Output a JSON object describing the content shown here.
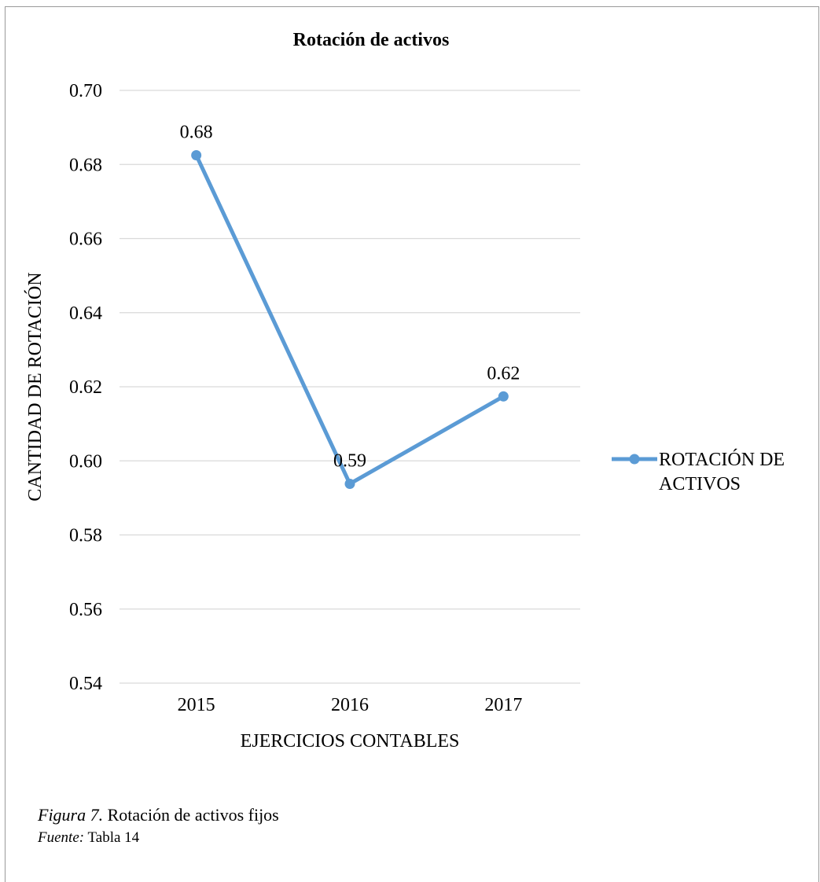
{
  "chart_data": {
    "type": "line",
    "title": "Rotación de activos",
    "xlabel": "EJERCICIOS CONTABLES",
    "ylabel": "CANTIDAD DE ROTACIÓN",
    "categories": [
      "2015",
      "2016",
      "2017"
    ],
    "series": [
      {
        "name": "ROTACIÓN DE ACTIVOS",
        "values": [
          0.6825,
          0.5938,
          0.6174
        ],
        "labels": [
          "0.68",
          "0.59",
          "0.62"
        ]
      }
    ],
    "ylim": [
      0.54,
      0.7
    ],
    "yticks": [
      "0.54",
      "0.56",
      "0.58",
      "0.60",
      "0.62",
      "0.64",
      "0.66",
      "0.68",
      "0.70"
    ],
    "grid": true,
    "legend": "right",
    "line_color": "#5b9bd5",
    "legend_lines": [
      "ROTACIÓN DE",
      "ACTIVOS"
    ]
  },
  "caption": {
    "figure_prefix": "Figura 7.",
    "figure_text": " Rotación de activos fijos",
    "source_prefix": "Fuente:",
    "source_text": " Tabla 14"
  }
}
